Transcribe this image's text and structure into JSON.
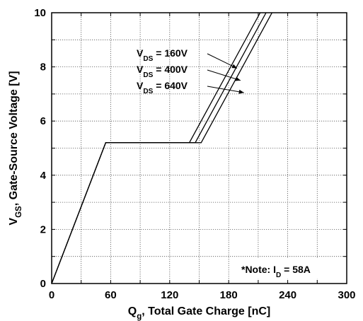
{
  "chart_data": {
    "type": "line",
    "xlabel": {
      "main": "Q",
      "sub": "g",
      "rest": ", Total Gate Charge [nC]"
    },
    "ylabel": {
      "main": "V",
      "sub": "GS",
      "rest": ", Gate-Source Voltage [V]"
    },
    "xlim": [
      0,
      300
    ],
    "ylim": [
      0,
      10
    ],
    "xticks": [
      0,
      60,
      120,
      180,
      240,
      300
    ],
    "yticks": [
      0,
      2,
      4,
      6,
      8,
      10
    ],
    "grid": true,
    "series": [
      {
        "name": "VDS = 160V",
        "x": [
          0,
          55,
          140,
          212
        ],
        "y": [
          0,
          5.2,
          5.2,
          10
        ]
      },
      {
        "name": "VDS = 400V",
        "x": [
          0,
          55,
          146,
          218
        ],
        "y": [
          0,
          5.2,
          5.2,
          10
        ]
      },
      {
        "name": "VDS = 640V",
        "x": [
          0,
          55,
          152,
          224
        ],
        "y": [
          0,
          5.2,
          5.2,
          10
        ]
      }
    ],
    "annotations": [
      {
        "label": {
          "main": "V",
          "sub": "DS",
          "rest": " = 160V"
        },
        "arrow_to": [
          188.5,
          7.95
        ]
      },
      {
        "label": {
          "main": "V",
          "sub": "DS",
          "rest": " = 400V"
        },
        "arrow_to": [
          192,
          7.5
        ]
      },
      {
        "label": {
          "main": "V",
          "sub": "DS",
          "rest": " = 640V"
        },
        "arrow_to": [
          195.5,
          7.05
        ]
      }
    ],
    "note": {
      "main": "*Note: I",
      "sub": "D",
      "rest": " = 58A"
    }
  }
}
